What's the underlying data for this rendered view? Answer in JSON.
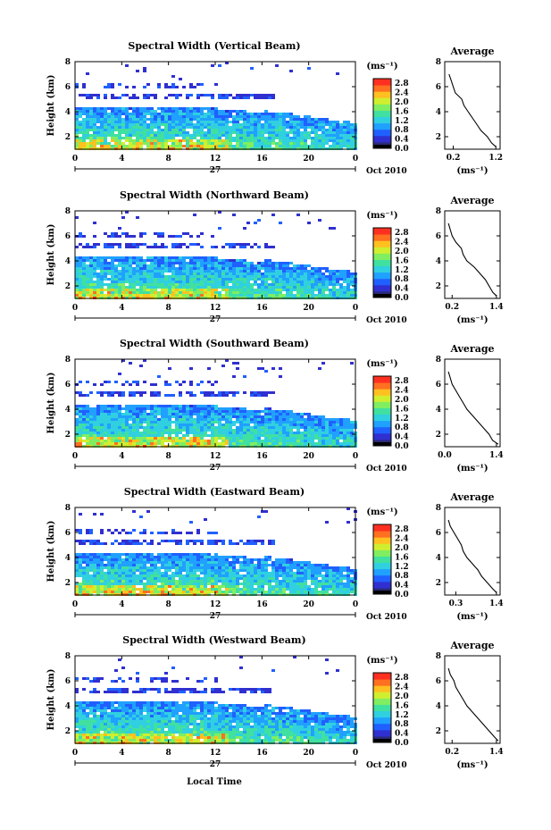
{
  "figure": {
    "xlabel": "Local Time",
    "date_label": "Oct 2010",
    "day_label": "27",
    "colorbar_unit": "(ms⁻¹)",
    "avg_title": "Average",
    "avg_unit": "(ms⁻¹)"
  },
  "chart_data": [
    {
      "type": "heatmap",
      "title": "Spectral Width (Vertical Beam)",
      "ylabel": "Height (km)",
      "xlabel": "",
      "x_ticks": [
        "0",
        "4",
        "8",
        "12",
        "16",
        "20",
        "0"
      ],
      "xlim": [
        0,
        24
      ],
      "y_ticks": [
        "2",
        "4",
        "6",
        "8"
      ],
      "ylim": [
        1,
        8
      ],
      "colorbar": {
        "ticks": [
          "0.0",
          "0.4",
          "0.8",
          "1.2",
          "1.6",
          "2.0",
          "2.4",
          "2.8"
        ],
        "range": [
          0.0,
          3.0
        ],
        "unit": "(ms⁻¹)"
      },
      "average_profile": {
        "title": "Average",
        "xlabel": "(ms⁻¹)",
        "x_ticks": [
          "0.2",
          "1.2"
        ],
        "xlim": [
          0.0,
          1.3
        ],
        "y_ticks": [
          "2",
          "4",
          "6",
          "8"
        ],
        "ylim": [
          1,
          8
        ],
        "heights": [
          1.2,
          1.5,
          2.0,
          2.5,
          3.0,
          3.5,
          4.0,
          4.5,
          5.0,
          5.5,
          6.0,
          6.5,
          7.0
        ],
        "values": [
          1.2,
          1.1,
          1.0,
          0.85,
          0.75,
          0.65,
          0.55,
          0.45,
          0.4,
          0.25,
          0.2,
          0.15,
          0.1
        ]
      }
    },
    {
      "type": "heatmap",
      "title": "Spectral Width (Northward Beam)",
      "ylabel": "Height (km)",
      "xlabel": "",
      "x_ticks": [
        "0",
        "4",
        "8",
        "12",
        "16",
        "20",
        "0"
      ],
      "xlim": [
        0,
        24
      ],
      "y_ticks": [
        "2",
        "4",
        "6",
        "8"
      ],
      "ylim": [
        1,
        8
      ],
      "colorbar": {
        "ticks": [
          "0.0",
          "0.4",
          "0.8",
          "1.2",
          "1.6",
          "2.0",
          "2.4",
          "2.8"
        ],
        "range": [
          0.0,
          3.0
        ],
        "unit": "(ms⁻¹)"
      },
      "average_profile": {
        "title": "Average",
        "xlabel": "(ms⁻¹)",
        "x_ticks": [
          "0.2",
          "1.4"
        ],
        "xlim": [
          0.0,
          1.5
        ],
        "y_ticks": [
          "2",
          "4",
          "6",
          "8"
        ],
        "ylim": [
          1,
          8
        ],
        "heights": [
          1.2,
          1.5,
          2.0,
          2.5,
          3.0,
          3.5,
          4.0,
          4.5,
          5.0,
          5.5,
          6.0,
          6.5,
          7.0
        ],
        "values": [
          1.4,
          1.3,
          1.2,
          1.1,
          0.95,
          0.8,
          0.6,
          0.5,
          0.45,
          0.3,
          0.2,
          0.15,
          0.1
        ]
      }
    },
    {
      "type": "heatmap",
      "title": "Spectral Width (Southward Beam)",
      "ylabel": "Height (km)",
      "xlabel": "",
      "x_ticks": [
        "0",
        "4",
        "8",
        "12",
        "16",
        "20",
        "0"
      ],
      "xlim": [
        0,
        24
      ],
      "y_ticks": [
        "2",
        "4",
        "6",
        "8"
      ],
      "ylim": [
        1,
        8
      ],
      "colorbar": {
        "ticks": [
          "0.0",
          "0.4",
          "0.8",
          "1.2",
          "1.6",
          "2.0",
          "2.4",
          "2.8"
        ],
        "range": [
          0.0,
          3.0
        ],
        "unit": "(ms⁻¹)"
      },
      "average_profile": {
        "title": "Average",
        "xlabel": "(ms⁻¹)",
        "x_ticks": [
          "0.0",
          "1.4"
        ],
        "xlim": [
          0.0,
          1.5
        ],
        "y_ticks": [
          "2",
          "4",
          "6",
          "8"
        ],
        "ylim": [
          1,
          8
        ],
        "heights": [
          1.2,
          1.5,
          2.0,
          2.5,
          3.0,
          3.5,
          4.0,
          4.5,
          5.0,
          5.5,
          6.0,
          6.5,
          7.0
        ],
        "values": [
          1.45,
          1.3,
          1.2,
          1.05,
          0.9,
          0.75,
          0.6,
          0.5,
          0.4,
          0.3,
          0.2,
          0.15,
          0.1
        ]
      }
    },
    {
      "type": "heatmap",
      "title": "Spectral Width (Eastward Beam)",
      "ylabel": "Height (km)",
      "xlabel": "",
      "x_ticks": [
        "0",
        "4",
        "8",
        "12",
        "16",
        "20",
        "0"
      ],
      "xlim": [
        0,
        24
      ],
      "y_ticks": [
        "2",
        "4",
        "6",
        "8"
      ],
      "ylim": [
        1,
        8
      ],
      "colorbar": {
        "ticks": [
          "0.0",
          "0.4",
          "0.8",
          "1.2",
          "1.6",
          "2.0",
          "2.4",
          "2.8"
        ],
        "range": [
          0.0,
          3.0
        ],
        "unit": "(ms⁻¹)"
      },
      "average_profile": {
        "title": "Average",
        "xlabel": "(ms⁻¹)",
        "x_ticks": [
          "0.3",
          "1.4"
        ],
        "xlim": [
          0.0,
          1.5
        ],
        "y_ticks": [
          "2",
          "4",
          "6",
          "8"
        ],
        "ylim": [
          1,
          8
        ],
        "heights": [
          1.2,
          1.5,
          2.0,
          2.5,
          3.0,
          3.5,
          4.0,
          4.5,
          5.0,
          5.5,
          6.0,
          6.5,
          7.0
        ],
        "values": [
          1.4,
          1.3,
          1.15,
          1.0,
          0.9,
          0.75,
          0.6,
          0.5,
          0.45,
          0.35,
          0.25,
          0.15,
          0.1
        ]
      }
    },
    {
      "type": "heatmap",
      "title": "Spectral Width (Westward Beam)",
      "ylabel": "Height (km)",
      "xlabel": "Local Time",
      "x_ticks": [
        "0",
        "4",
        "8",
        "12",
        "16",
        "20",
        "0"
      ],
      "xlim": [
        0,
        24
      ],
      "y_ticks": [
        "2",
        "4",
        "6",
        "8"
      ],
      "ylim": [
        1,
        8
      ],
      "colorbar": {
        "ticks": [
          "0.0",
          "0.4",
          "0.8",
          "1.2",
          "1.6",
          "2.0",
          "2.4",
          "2.8"
        ],
        "range": [
          0.0,
          3.0
        ],
        "unit": "(ms⁻¹)"
      },
      "average_profile": {
        "title": "Average",
        "xlabel": "(ms⁻¹)",
        "x_ticks": [
          "0.2",
          "1.4"
        ],
        "xlim": [
          0.0,
          1.5
        ],
        "y_ticks": [
          "2",
          "4",
          "6",
          "8"
        ],
        "ylim": [
          1,
          8
        ],
        "heights": [
          1.2,
          1.5,
          2.0,
          2.5,
          3.0,
          3.5,
          4.0,
          4.5,
          5.0,
          5.5,
          6.0,
          6.5,
          7.0
        ],
        "values": [
          1.45,
          1.35,
          1.2,
          1.05,
          0.9,
          0.75,
          0.6,
          0.5,
          0.4,
          0.3,
          0.25,
          0.15,
          0.1
        ]
      }
    }
  ],
  "colors": {
    "colormap": [
      "#2a2a7a",
      "#3030d0",
      "#2060ff",
      "#20a0ff",
      "#30d0e0",
      "#40e0a0",
      "#80ee60",
      "#d0ee30",
      "#ffc020",
      "#ff7020",
      "#ff3020"
    ]
  }
}
